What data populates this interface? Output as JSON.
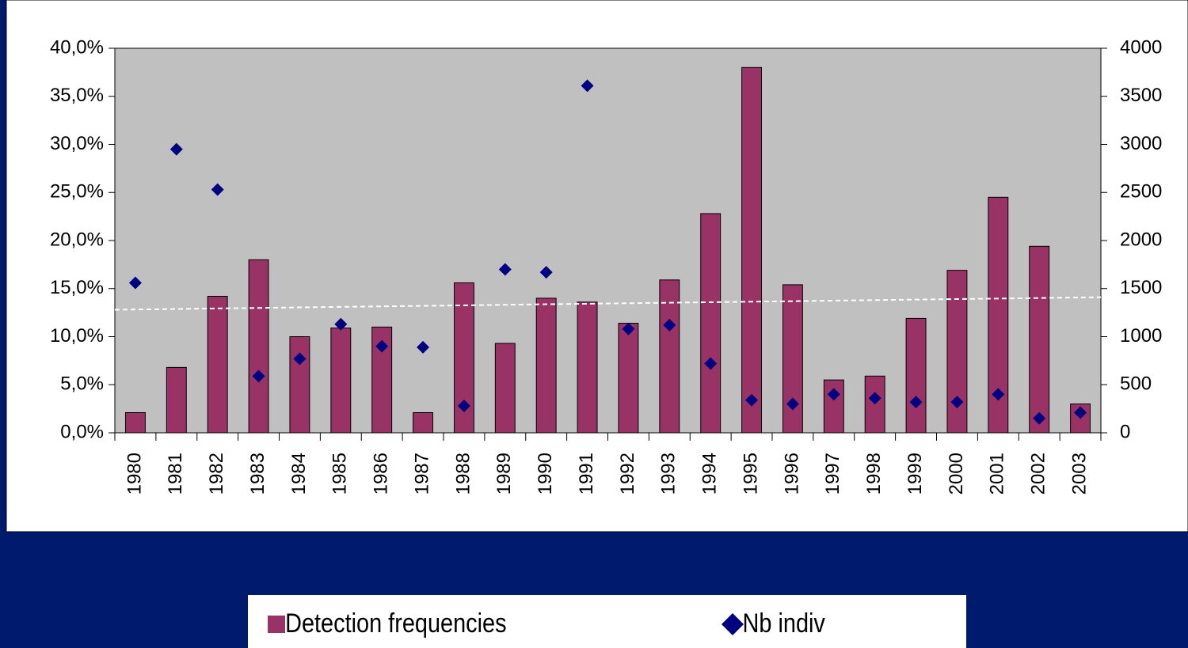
{
  "chart_data": {
    "type": "bar",
    "categories": [
      "1980",
      "1981",
      "1982",
      "1983",
      "1984",
      "1985",
      "1986",
      "1987",
      "1988",
      "1989",
      "1990",
      "1991",
      "1992",
      "1993",
      "1994",
      "1995",
      "1996",
      "1997",
      "1998",
      "1999",
      "2000",
      "2001",
      "2002",
      "2003"
    ],
    "series": [
      {
        "name": "Detection frequencies",
        "type": "bar",
        "color": "#993366",
        "values": [
          2.1,
          6.8,
          14.2,
          18.0,
          10.0,
          10.9,
          11.0,
          2.1,
          15.6,
          9.3,
          14.0,
          13.6,
          11.4,
          15.9,
          22.8,
          38.0,
          15.4,
          5.5,
          5.9,
          11.9,
          16.9,
          24.5,
          19.4,
          3.0
        ]
      },
      {
        "name": "Nb indiv",
        "type": "scatter",
        "axis": "y2",
        "color": "#000080",
        "values": [
          1560,
          2950,
          2530,
          590,
          770,
          1130,
          900,
          890,
          280,
          1700,
          1670,
          3610,
          1080,
          1120,
          720,
          340,
          300,
          400,
          360,
          320,
          320,
          400,
          150,
          210
        ]
      }
    ],
    "trend_line": [
      12.8,
      14.1
    ],
    "ylim": [
      0,
      40
    ],
    "yticks": [
      {
        "value": 0,
        "label": "0,0%"
      },
      {
        "value": 5,
        "label": "5,0%"
      },
      {
        "value": 10,
        "label": "10,0%"
      },
      {
        "value": 15,
        "label": "15,0%"
      },
      {
        "value": 20,
        "label": "20,0%"
      },
      {
        "value": 25,
        "label": "25,0%"
      },
      {
        "value": 30,
        "label": "30,0%"
      },
      {
        "value": 35,
        "label": "35,0%"
      },
      {
        "value": 40,
        "label": "40,0%"
      }
    ],
    "y2lim": [
      0,
      4000
    ],
    "y2ticks": [
      0,
      500,
      1000,
      1500,
      2000,
      2500,
      3000,
      3500,
      4000
    ],
    "legend": "bottom"
  }
}
